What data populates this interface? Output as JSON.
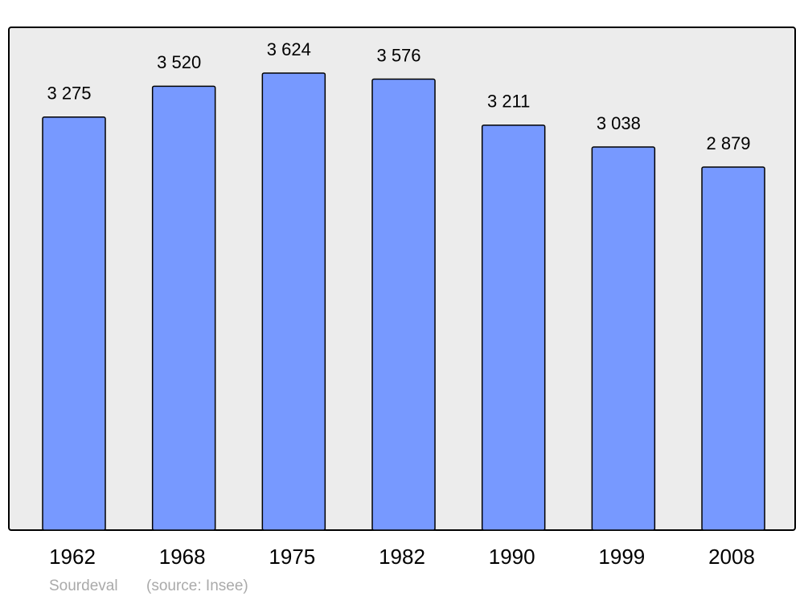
{
  "chart_data": {
    "type": "bar",
    "title": "Sourdeval",
    "source": "(source: Insee)",
    "categories": [
      "1962",
      "1968",
      "1975",
      "1982",
      "1990",
      "1999",
      "2008"
    ],
    "values": [
      3275,
      3520,
      3624,
      3576,
      3211,
      3038,
      2879
    ],
    "value_labels": [
      "3 275",
      "3 520",
      "3 624",
      "3 576",
      "3 211",
      "3 038",
      "2 879"
    ],
    "color": "#7799ff"
  }
}
